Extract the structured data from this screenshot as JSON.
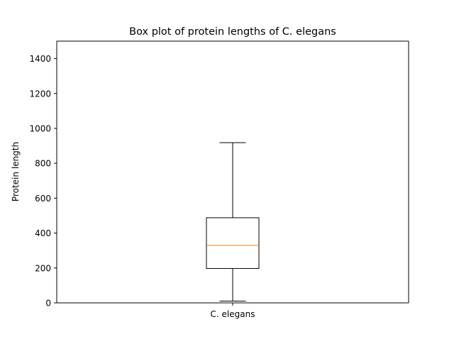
{
  "chart_data": {
    "type": "box",
    "title": "Box plot of protein lengths of C. elegans",
    "xlabel": "",
    "ylabel": "Protein length",
    "categories": [
      "C. elegans"
    ],
    "ylim": [
      0,
      1500
    ],
    "yticks": [
      0,
      200,
      400,
      600,
      800,
      1000,
      1200,
      1400
    ],
    "boxes": [
      {
        "category": "C. elegans",
        "whisker_low": 10,
        "q1": 197,
        "median": 330,
        "q3": 488,
        "whisker_high": 918
      }
    ],
    "grid": false,
    "legend": "none",
    "colors": {
      "box": "#000000",
      "median": "#ff7f0e",
      "whisker": "#000000"
    }
  }
}
